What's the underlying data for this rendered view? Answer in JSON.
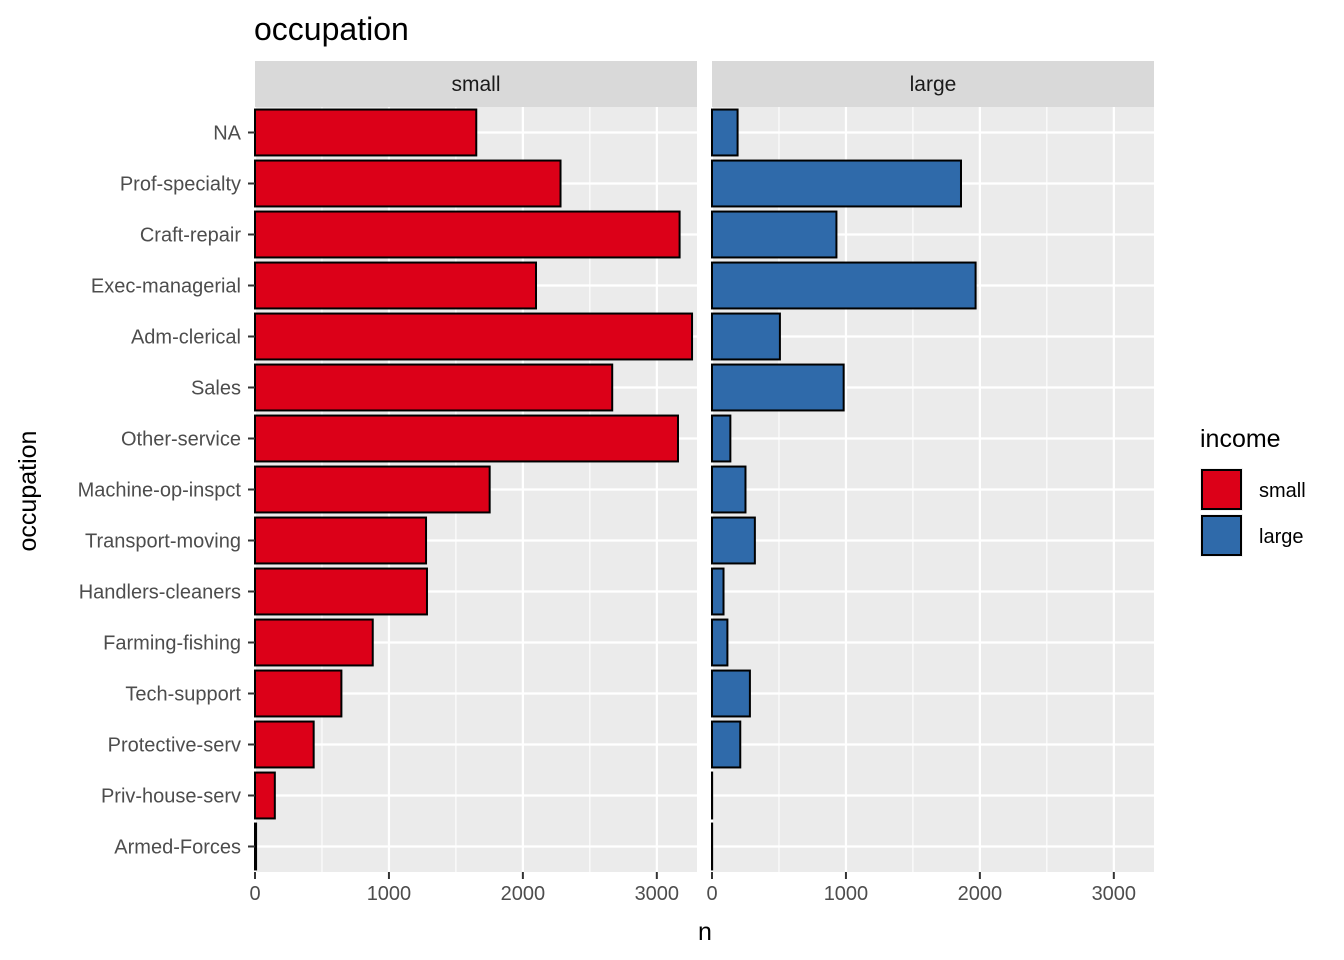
{
  "chart_data": {
    "type": "bar",
    "orientation": "horizontal",
    "title": "occupation",
    "xlabel": "n",
    "ylabel": "occupation",
    "xlim": [
      0,
      3300
    ],
    "x_ticks": [
      0,
      1000,
      2000,
      3000
    ],
    "categories": [
      "NA",
      "Prof-specialty",
      "Craft-repair",
      "Exec-managerial",
      "Adm-clerical",
      "Sales",
      "Other-service",
      "Machine-op-inspct",
      "Transport-moving",
      "Handlers-cleaners",
      "Farming-fishing",
      "Tech-support",
      "Protective-serv",
      "Priv-house-serv",
      "Armed-Forces"
    ],
    "facets": [
      "small",
      "large"
    ],
    "series": [
      {
        "name": "small",
        "facet": "small",
        "color": "#DC0018",
        "values": [
          1652,
          2281,
          3170,
          2098,
          3263,
          2667,
          3158,
          1752,
          1277,
          1284,
          879,
          645,
          438,
          148,
          8
        ]
      },
      {
        "name": "large",
        "facet": "large",
        "color": "#2F6AAA",
        "values": [
          191,
          1859,
          929,
          1968,
          507,
          983,
          137,
          250,
          320,
          86,
          115,
          283,
          211,
          1,
          1
        ]
      }
    ],
    "grid": true,
    "legend": {
      "title": "income",
      "position": "right",
      "entries": [
        "small",
        "large"
      ]
    }
  }
}
